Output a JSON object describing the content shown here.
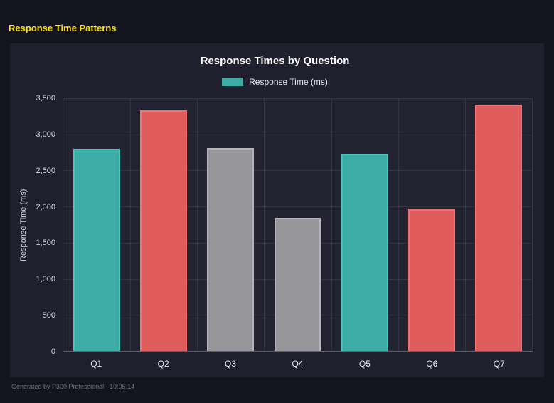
{
  "page": {
    "title": "Response Time Patterns",
    "footer": "Generated by P300 Professional - 10:05:14"
  },
  "colors": {
    "title_accent": "#ffe400",
    "teal": "#3caca6",
    "red": "#e05c5c",
    "gray": "#96969b",
    "panel_background": "#1f1f2d",
    "page_background": "#14141f"
  },
  "chart_data": {
    "type": "bar",
    "title": "Response Times by Question",
    "legend_label": "Response Time (ms)",
    "legend_color": "#3caca6",
    "legend_position": "top",
    "categories": [
      "Q1",
      "Q2",
      "Q3",
      "Q4",
      "Q5",
      "Q6",
      "Q7"
    ],
    "values": [
      2800,
      3330,
      2810,
      1840,
      2730,
      1960,
      3410
    ],
    "bar_colors": [
      "#3caca6",
      "#e05c5c",
      "#96969b",
      "#96969b",
      "#3caca6",
      "#e05c5c",
      "#e05c5c"
    ],
    "bar_border_colors": [
      "#49c4bd",
      "#f27070",
      "#b4b4ba",
      "#b4b4ba",
      "#49c4bd",
      "#f27070",
      "#f27070"
    ],
    "xlabel": "",
    "ylabel": "Response Time (ms)",
    "ylim": [
      0,
      3500
    ],
    "ytick_values": [
      3500,
      3000,
      2500,
      2000,
      1500,
      1000,
      500,
      0
    ],
    "ytick_labels": [
      "3,500",
      "3,000",
      "2,500",
      "2,000",
      "1,500",
      "1,000",
      "500",
      "0"
    ],
    "grid": true
  }
}
